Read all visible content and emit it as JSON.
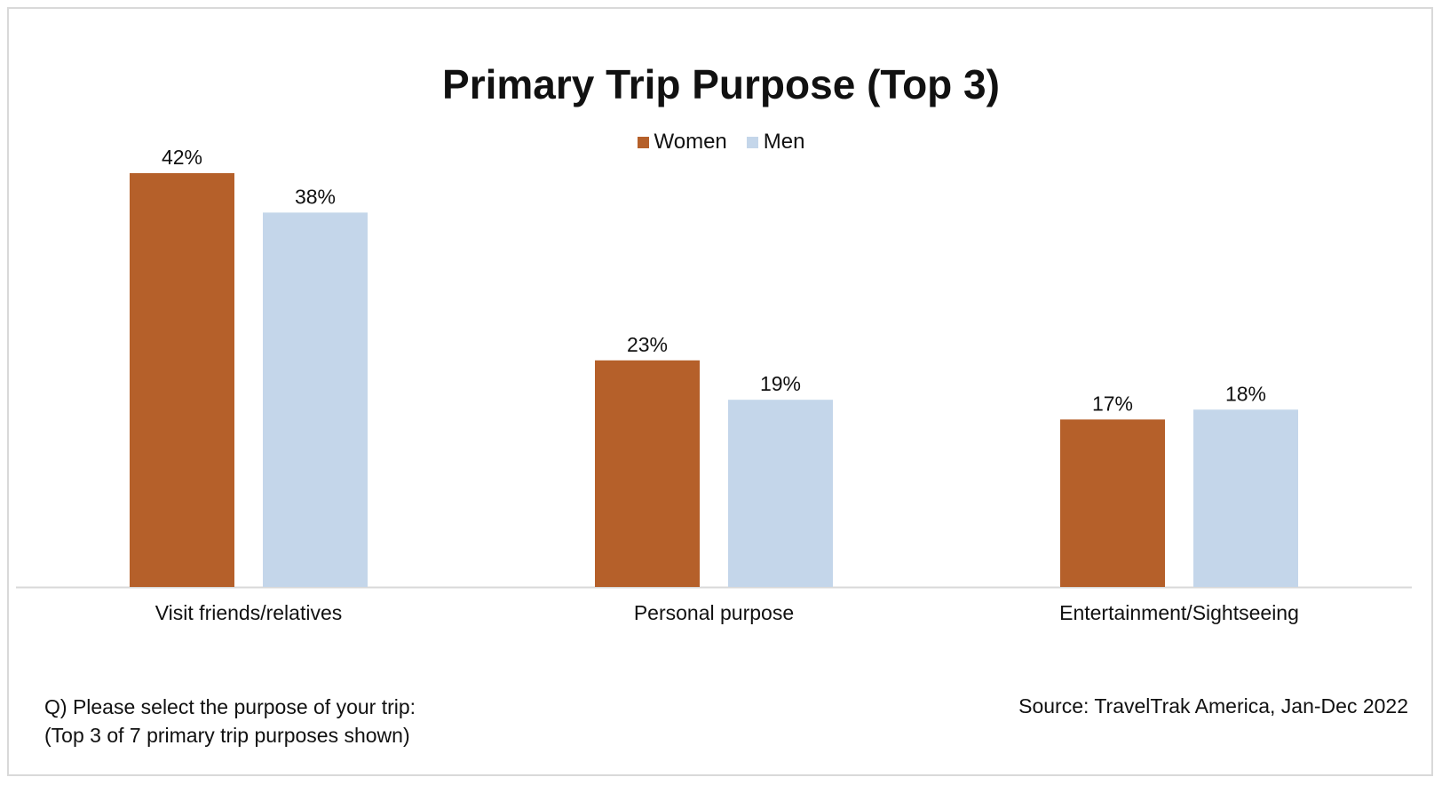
{
  "chart_data": {
    "type": "bar",
    "title": "Primary Trip Purpose (Top 3)",
    "categories": [
      "Visit friends/relatives",
      "Personal purpose",
      "Entertainment/Sightseeing"
    ],
    "series": [
      {
        "name": "Women",
        "color": "#b5602a",
        "values": [
          42,
          23,
          17
        ],
        "labels": [
          "42%",
          "23%",
          "17%"
        ]
      },
      {
        "name": "Men",
        "color": "#c4d6ea",
        "values": [
          38,
          19,
          18
        ],
        "labels": [
          "38%",
          "19%",
          "18%"
        ]
      }
    ],
    "ylim": [
      0,
      42
    ],
    "grid": false,
    "legend_position": "top"
  },
  "footer": {
    "note_line1": "Q) Please select the purpose of your trip:",
    "note_line2": "(Top 3 of 7 primary trip purposes shown)",
    "source": "Source: TravelTrak America, Jan-Dec 2022"
  },
  "colors": {
    "baseline": "#d9d9d9"
  }
}
